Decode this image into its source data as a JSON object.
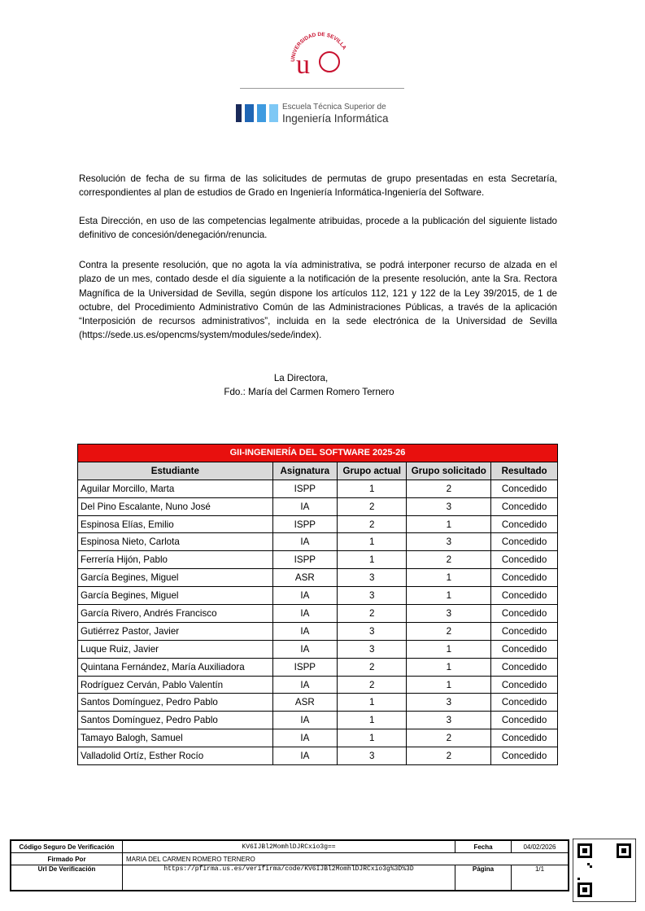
{
  "logo": {
    "university": "UNIVERSIDAD DE SEVILLA",
    "school_line1": "Escuela Técnica Superior de",
    "school_line2": "Ingeniería Informática"
  },
  "paragraphs": [
    "Resolución de fecha de su firma de las solicitudes de permutas de grupo presentadas en esta Secretaría, correspondientes al plan de estudios de Grado en Ingeniería Informática-Ingeniería del Software.",
    "Esta Dirección, en uso de las competencias legalmente atribuidas, procede a la publicación del siguiente listado definitivo de concesión/denegación/renuncia.",
    "Contra la presente resolución, que no agota la vía administrativa, se podrá interponer recurso de alzada en el plazo de un mes, contado desde el día siguiente a la notificación de la presente resolución, ante la Sra. Rectora Magnífica de la Universidad de Sevilla, según dispone los artículos 112, 121 y 122 de la Ley 39/2015, de 1 de octubre, del Procedimiento Administrativo Común de las Administraciones Públicas, a través de la aplicación “Interposición de recursos administrativos”, incluida en la sede electrónica de la Universidad de Sevilla (https://sede.us.es/opencms/system/modules/sede/index)."
  ],
  "signature": {
    "role": "La Directora,",
    "name": "Fdo.:  María del Carmen Romero Ternero"
  },
  "table": {
    "title": "GII-INGENIERÍA DEL SOFTWARE 2025-26",
    "headers": [
      "Estudiante",
      "Asignatura",
      "Grupo actual",
      "Grupo solicitado",
      "Resultado"
    ],
    "rows": [
      [
        "Aguilar Morcillo, Marta",
        "ISPP",
        1,
        2,
        "Concedido"
      ],
      [
        "Del Pino Escalante, Nuno José",
        "IA",
        2,
        3,
        "Concedido"
      ],
      [
        "Espinosa Elías, Emilio",
        "ISPP",
        2,
        1,
        "Concedido"
      ],
      [
        "Espinosa Nieto, Carlota",
        "IA",
        1,
        3,
        "Concedido"
      ],
      [
        "Ferrería Hijón, Pablo",
        "ISPP",
        1,
        2,
        "Concedido"
      ],
      [
        "García Begines, Miguel",
        "ASR",
        3,
        1,
        "Concedido"
      ],
      [
        "García Begines, Miguel",
        "IA",
        3,
        1,
        "Concedido"
      ],
      [
        "García Rivero, Andrés Francisco",
        "IA",
        2,
        3,
        "Concedido"
      ],
      [
        "Gutiérrez Pastor, Javier",
        "IA",
        3,
        2,
        "Concedido"
      ],
      [
        "Luque Ruiz, Javier",
        "IA",
        3,
        1,
        "Concedido"
      ],
      [
        "Quintana Fernández, María Auxiliadora",
        "ISPP",
        2,
        1,
        "Concedido"
      ],
      [
        "Rodríguez Cerván, Pablo Valentín",
        "IA",
        2,
        1,
        "Concedido"
      ],
      [
        "Santos Domínguez, Pedro Pablo",
        "ASR",
        1,
        3,
        "Concedido"
      ],
      [
        "Santos Domínguez, Pedro Pablo",
        "IA",
        1,
        3,
        "Concedido"
      ],
      [
        "Tamayo Balogh, Samuel",
        "IA",
        1,
        2,
        "Concedido"
      ],
      [
        "Valladolid Ortíz, Esther Rocío",
        "IA",
        3,
        2,
        "Concedido"
      ]
    ]
  },
  "footer": {
    "code_label": "Código Seguro De Verificación",
    "code": "KV6IJBl2MomhlDJRCxio3g==",
    "date_label": "Fecha",
    "date": "04/02/2026",
    "signed_label": "Firmado Por",
    "signed": "MARIA DEL CARMEN ROMERO TERNERO",
    "url_label": "Url De Verificación",
    "url": "https://pfirma.us.es/verifirma/code/KV6IJBl2MomhlDJRCxio3g%3D%3D",
    "page_label": "Página",
    "page": "1/1"
  }
}
